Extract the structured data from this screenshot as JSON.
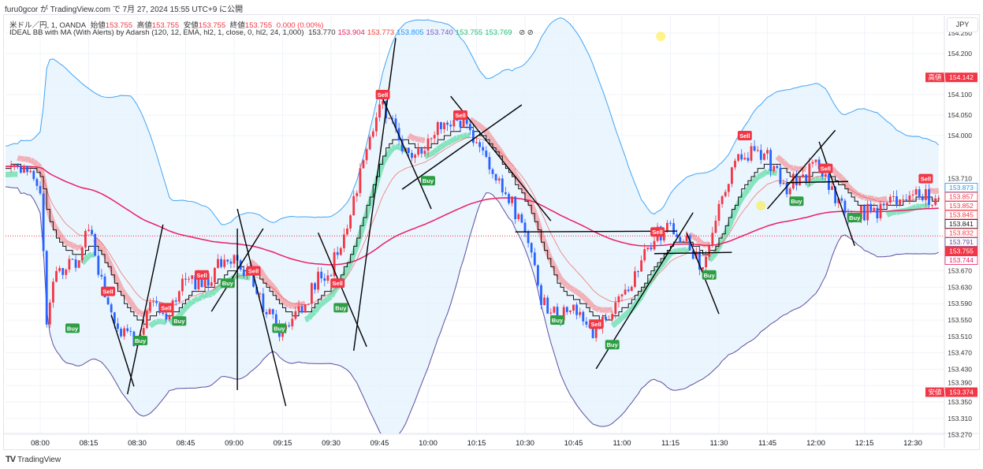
{
  "published": "furu0gcor が TradingView.com で 7月 27, 2024 15:55 UTC+9 に公開",
  "legend": {
    "symbol": "米ドル／円, 1, OANDA",
    "open_label": "始値",
    "open": "153.755",
    "high_label": "高値",
    "high": "153.755",
    "low_label": "安値",
    "low": "153.755",
    "close_label": "終値",
    "close": "153.755",
    "change": "0.000 (0.00%)",
    "indicator": "IDEAL BB with MA (With Alerts) by Adarsh (120, 12, EMA, hl2, 1, close, 0, hl2, 24, 1,000)",
    "indicator_values": [
      {
        "v": "153.770",
        "color": "#333333"
      },
      {
        "v": "153.904",
        "color": "#e91e63"
      },
      {
        "v": "153.773",
        "color": "#f44336"
      },
      {
        "v": "153.805",
        "color": "#2196f3"
      },
      {
        "v": "153.740",
        "color": "#7e57c2"
      },
      {
        "v": "153.755",
        "color": "#1fbf75"
      },
      {
        "v": "153.769",
        "color": "#1fbf75"
      }
    ],
    "icons": "⊘ ⊘"
  },
  "currency_button": "JPY",
  "brand": "TradingView",
  "colors": {
    "up": "#f23645",
    "down": "#2962ff",
    "band_upper": "#42a5f5",
    "band_lower": "#5c4fa0",
    "band_fill": "#e3f2fd",
    "slow_ma": "#e91e63",
    "fast_ma": "#f44336",
    "buy": "#2e9e44",
    "sell": "#f23645"
  },
  "chart_data": {
    "type": "candlestick",
    "title": "USD/JPY 1m OANDA",
    "ylim": [
      153.27,
      154.26
    ],
    "xlim": [
      "07:49",
      "12:39"
    ],
    "x_ticks": [
      "08:00",
      "08:15",
      "08:30",
      "08:45",
      "09:00",
      "09:15",
      "09:30",
      "09:45",
      "10:00",
      "10:15",
      "10:30",
      "10:45",
      "11:00",
      "11:15",
      "11:30",
      "11:45",
      "12:00",
      "12:15",
      "12:30"
    ],
    "y_ticks": [
      "154.250",
      "154.200",
      "154.100",
      "154.050",
      "154.000",
      "153.710",
      "153.670",
      "153.630",
      "153.590",
      "153.550",
      "153.510",
      "153.470",
      "153.430",
      "153.390",
      "153.350",
      "153.310",
      "153.270"
    ],
    "close_path": [
      [
        "07:49",
        153.917
      ],
      [
        "07:58",
        153.905
      ],
      [
        "08:00",
        153.85
      ],
      [
        "08:02",
        153.56
      ],
      [
        "08:05",
        153.658
      ],
      [
        "08:12",
        153.696
      ],
      [
        "08:15",
        153.773
      ],
      [
        "08:20",
        153.6
      ],
      [
        "08:25",
        153.523
      ],
      [
        "08:30",
        153.485
      ],
      [
        "08:35",
        153.6
      ],
      [
        "08:40",
        153.562
      ],
      [
        "08:45",
        153.658
      ],
      [
        "08:50",
        153.638
      ],
      [
        "08:55",
        153.677
      ],
      [
        "09:00",
        153.715
      ],
      [
        "09:05",
        153.658
      ],
      [
        "09:10",
        153.562
      ],
      [
        "09:15",
        153.523
      ],
      [
        "09:20",
        153.562
      ],
      [
        "09:25",
        153.638
      ],
      [
        "09:30",
        153.677
      ],
      [
        "09:35",
        153.773
      ],
      [
        "09:40",
        153.946
      ],
      [
        "09:45",
        154.081
      ],
      [
        "09:50",
        154.004
      ],
      [
        "09:55",
        153.927
      ],
      [
        "10:00",
        153.985
      ],
      [
        "10:05",
        154.033
      ],
      [
        "10:10",
        154.033
      ],
      [
        "10:15",
        153.985
      ],
      [
        "10:20",
        153.927
      ],
      [
        "10:25",
        153.85
      ],
      [
        "10:30",
        153.754
      ],
      [
        "10:35",
        153.6
      ],
      [
        "10:40",
        153.562
      ],
      [
        "10:45",
        153.581
      ],
      [
        "10:50",
        153.523
      ],
      [
        "10:55",
        153.542
      ],
      [
        "11:00",
        153.6
      ],
      [
        "11:05",
        153.677
      ],
      [
        "11:10",
        153.754
      ],
      [
        "11:15",
        153.773
      ],
      [
        "11:20",
        153.735
      ],
      [
        "11:25",
        153.677
      ],
      [
        "11:30",
        153.831
      ],
      [
        "11:35",
        153.927
      ],
      [
        "11:40",
        153.956
      ],
      [
        "11:45",
        153.946
      ],
      [
        "11:50",
        153.869
      ],
      [
        "12:00",
        153.927
      ],
      [
        "12:05",
        153.869
      ],
      [
        "12:10",
        153.802
      ],
      [
        "12:15",
        153.812
      ],
      [
        "12:20",
        153.821
      ],
      [
        "12:25",
        153.84
      ],
      [
        "12:30",
        153.86
      ],
      [
        "12:38",
        153.841
      ]
    ],
    "signals": [
      {
        "t": "08:10",
        "p": 153.53,
        "label": "Buy"
      },
      {
        "t": "08:21",
        "p": 153.62,
        "label": "Sell"
      },
      {
        "t": "08:31",
        "p": 153.5,
        "label": "Buy"
      },
      {
        "t": "08:39",
        "p": 153.58,
        "label": "Sell"
      },
      {
        "t": "08:43",
        "p": 153.565,
        "label": "Buy"
      },
      {
        "t": "08:50",
        "p": 153.66,
        "label": "Sell"
      },
      {
        "t": "08:58",
        "p": 153.64,
        "label": "Buy"
      },
      {
        "t": "09:06",
        "p": 153.67,
        "label": "Sell"
      },
      {
        "t": "09:14",
        "p": 153.53,
        "label": "Buy"
      },
      {
        "t": "09:32",
        "p": 153.64,
        "label": "Sell"
      },
      {
        "t": "09:33",
        "p": 153.58,
        "label": "Buy"
      },
      {
        "t": "09:46",
        "p": 154.1,
        "label": "Sell"
      },
      {
        "t": "10:00",
        "p": 153.89,
        "label": "Buy"
      },
      {
        "t": "10:10",
        "p": 154.05,
        "label": "Sell"
      },
      {
        "t": "10:40",
        "p": 153.55,
        "label": "Buy"
      },
      {
        "t": "10:52",
        "p": 153.54,
        "label": "Sell"
      },
      {
        "t": "10:57",
        "p": 153.49,
        "label": "Buy"
      },
      {
        "t": "11:11",
        "p": 153.765,
        "label": "Sell"
      },
      {
        "t": "11:27",
        "p": 153.66,
        "label": "Buy"
      },
      {
        "t": "11:38",
        "p": 154.0,
        "label": "Sell"
      },
      {
        "t": "11:54",
        "p": 153.84,
        "label": "Buy"
      },
      {
        "t": "12:03",
        "p": 153.92,
        "label": "Sell"
      },
      {
        "t": "12:12",
        "p": 153.8,
        "label": "Buy"
      },
      {
        "t": "12:34",
        "p": 153.895,
        "label": "Sell"
      }
    ],
    "trendlines": [
      [
        [
          "09:37",
          153.475
        ],
        [
          "09:50",
          154.238
        ]
      ],
      [
        [
          "09:46",
          154.09
        ],
        [
          "10:01",
          153.821
        ]
      ],
      [
        [
          "10:07",
          154.096
        ],
        [
          "10:38",
          153.792
        ]
      ],
      [
        [
          "09:52",
          153.869
        ],
        [
          "10:29",
          154.075
        ]
      ],
      [
        [
          "10:27",
          153.765
        ],
        [
          "11:17",
          153.767
        ]
      ],
      [
        [
          "10:52",
          153.431
        ],
        [
          "11:22",
          153.812
        ]
      ],
      [
        [
          "08:27",
          153.369
        ],
        [
          "08:38",
          153.783
        ]
      ],
      [
        [
          "08:22",
          153.562
        ],
        [
          "08:29",
          153.388
        ]
      ],
      [
        [
          "08:53",
          153.571
        ],
        [
          "09:09",
          153.773
        ]
      ],
      [
        [
          "09:01",
          153.821
        ],
        [
          "09:16",
          153.34
        ]
      ],
      [
        [
          "09:26",
          153.763
        ],
        [
          "09:41",
          153.485
        ]
      ],
      [
        [
          "12:01",
          153.985
        ],
        [
          "12:12",
          153.731
        ]
      ],
      [
        [
          "11:45",
          153.821
        ],
        [
          "12:06",
          154.013
        ]
      ],
      [
        [
          "11:20",
          153.763
        ],
        [
          "11:30",
          153.565
        ]
      ],
      [
        [
          "11:10",
          153.712
        ],
        [
          "11:34",
          153.715
        ]
      ],
      [
        [
          "09:01",
          153.773
        ],
        [
          "09:01",
          153.379
        ]
      ],
      [
        [
          "11:51",
          153.885
        ],
        [
          "12:10",
          153.888
        ]
      ]
    ],
    "highlights": [
      [
        "11:12",
        154.242
      ],
      [
        "11:43",
        153.829
      ]
    ],
    "current_price": 153.755,
    "price_labels": [
      {
        "v": "153.873",
        "style": "outline",
        "color": "#2196f3"
      },
      {
        "v": "153.857",
        "style": "outline",
        "color": "#f23645"
      },
      {
        "v": "153.852",
        "style": "outline",
        "color": "#f23645"
      },
      {
        "v": "153.845",
        "style": "outline",
        "color": "#f23645"
      },
      {
        "v": "153.841",
        "style": "outline",
        "color": "#131722"
      },
      {
        "v": "153.832",
        "style": "outline",
        "color": "#f23645"
      },
      {
        "v": "153.791",
        "style": "outline",
        "color": "#5c4fa0"
      },
      {
        "v": "153.755",
        "style": "filled",
        "color": "#f23645"
      },
      {
        "v": "153.744",
        "style": "outline",
        "color": "#e91e63"
      }
    ],
    "high_marker": {
      "label": "高値",
      "v": "154.142"
    },
    "low_marker": {
      "label": "安値",
      "v": "153.374"
    }
  }
}
